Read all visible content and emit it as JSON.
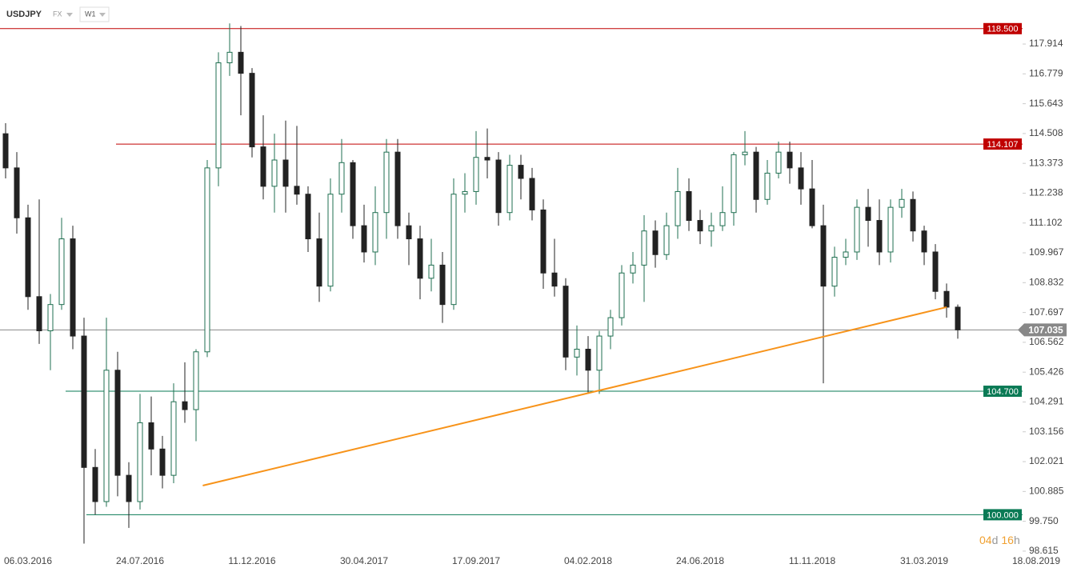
{
  "header": {
    "symbol": "USDJPY",
    "market": "FX",
    "interval": "W1"
  },
  "countdown": [
    "04",
    "d",
    "16",
    "h"
  ],
  "chart_data": {
    "type": "candlestick",
    "categories": [
      null,
      null,
      "06.03.2016",
      null,
      null,
      null,
      null,
      null,
      null,
      null,
      null,
      null,
      "24.07.2016",
      null,
      null,
      null,
      null,
      null,
      null,
      null,
      null,
      null,
      "11.12.2016",
      null,
      null,
      null,
      null,
      null,
      null,
      null,
      null,
      null,
      "30.04.2017",
      null,
      null,
      null,
      null,
      null,
      null,
      null,
      null,
      null,
      "17.09.2017",
      null,
      null,
      null,
      null,
      null,
      null,
      null,
      null,
      null,
      "04.02.2018",
      null,
      null,
      null,
      null,
      null,
      null,
      null,
      null,
      null,
      "24.06.2018",
      null,
      null,
      null,
      null,
      null,
      null,
      null,
      null,
      null,
      "11.11.2018",
      null,
      null,
      null,
      null,
      null,
      null,
      null,
      null,
      null,
      "31.03.2019",
      null,
      null,
      null,
      null,
      null,
      null,
      null,
      null,
      null,
      "18.08.2019"
    ],
    "open": [
      114.5,
      113.2,
      111.3,
      108.3,
      107,
      108,
      110.5,
      106.8,
      101.8,
      100.5,
      105.5,
      101.5,
      100.5,
      103.5,
      102.5,
      101.5,
      104.3,
      104,
      106.2,
      113.2,
      117.2,
      117.6,
      116.8,
      114,
      112.5,
      113.5,
      112.5,
      112.2,
      110.5,
      108.7,
      112.2,
      113.4,
      111,
      110,
      111.5,
      113.8,
      111,
      110.5,
      109,
      109.5,
      108,
      112.2,
      112.3,
      113.6,
      113.5,
      111.5,
      113.3,
      112.8,
      111.6,
      109.2,
      108.7,
      106,
      106.3,
      105.5,
      106.8,
      107.5,
      109.2,
      109.5,
      110.8,
      109.9,
      111,
      112.3,
      111.2,
      110.8,
      111,
      111.5,
      113.7,
      113.8,
      112,
      113,
      113.8,
      113.2,
      112.4,
      111,
      108.7,
      109.8,
      110,
      111.7,
      111.2,
      110,
      111.7,
      112,
      110.8,
      110,
      108.5,
      107.9,
      null,
      null,
      null,
      null,
      null,
      null,
      null
    ],
    "high": [
      114.9,
      113.8,
      111.8,
      112,
      108.4,
      111.3,
      111,
      107.5,
      102.5,
      107.5,
      106.2,
      102,
      104.6,
      104.5,
      103,
      105,
      105.8,
      106.3,
      113.5,
      117.6,
      118.7,
      118.6,
      117,
      115.2,
      114.5,
      115,
      114.8,
      112.5,
      111.5,
      112.8,
      114.3,
      113.5,
      111.8,
      112.5,
      114.3,
      114.3,
      111.5,
      111,
      110.5,
      110,
      112.8,
      113,
      114.6,
      114.7,
      113.8,
      113.7,
      113.7,
      113.2,
      112,
      110.5,
      109,
      107.2,
      106.8,
      107,
      107.8,
      109.5,
      110,
      111.4,
      111.2,
      111.5,
      113.2,
      112.8,
      111.6,
      111.5,
      112.5,
      113.8,
      114.6,
      114,
      113.5,
      114.2,
      114.2,
      113.8,
      113.5,
      111.8,
      110.2,
      110.5,
      112,
      112.4,
      112,
      112,
      112.4,
      112.3,
      111,
      110.3,
      108.8,
      108,
      null,
      null,
      null,
      null,
      null,
      null,
      null
    ],
    "low": [
      112.8,
      110.7,
      107.8,
      106.5,
      105.5,
      107.8,
      106.3,
      98.9,
      100,
      100.3,
      100.7,
      99.5,
      100.2,
      101.5,
      101,
      101.2,
      103.5,
      102.8,
      106,
      112.5,
      116.7,
      115.2,
      113.6,
      112,
      111.5,
      111.5,
      111.8,
      110,
      108.1,
      108.5,
      111.5,
      110.5,
      109.6,
      109.5,
      110.5,
      110.5,
      109.5,
      108.2,
      108.5,
      107.3,
      107.8,
      111.5,
      111.8,
      112.8,
      111,
      111.2,
      112,
      111.2,
      108.6,
      108.3,
      105.5,
      105.3,
      104.6,
      104.6,
      106.3,
      107.2,
      108.8,
      108.1,
      109.4,
      109.7,
      110.5,
      110.8,
      110.3,
      110.2,
      110.8,
      111,
      113.3,
      111.5,
      111.8,
      112.8,
      112.6,
      111.8,
      110.9,
      105,
      108.3,
      109.5,
      109.7,
      110.2,
      109.5,
      109.6,
      111.3,
      110.4,
      109.5,
      108.2,
      107.5,
      106.7,
      null,
      null,
      null,
      null,
      null,
      null,
      null
    ],
    "close": [
      113.2,
      111.3,
      108.3,
      107,
      108,
      110.5,
      106.8,
      101.8,
      100.5,
      105.5,
      101.5,
      100.5,
      103.5,
      102.5,
      101.5,
      104.3,
      104,
      106.2,
      113.2,
      117.2,
      117.6,
      116.8,
      114,
      112.5,
      113.5,
      112.5,
      112.2,
      110.5,
      108.7,
      112.2,
      113.4,
      111,
      110,
      111.5,
      113.8,
      111,
      110.5,
      109,
      109.5,
      108,
      112.2,
      112.3,
      113.6,
      113.5,
      111.5,
      113.3,
      112.8,
      111.6,
      109.2,
      108.7,
      106,
      106.3,
      105.5,
      106.8,
      107.5,
      109.2,
      109.5,
      110.8,
      109.9,
      111,
      112.3,
      111.2,
      110.8,
      111,
      111.5,
      113.7,
      113.8,
      112,
      113,
      113.8,
      113.2,
      112.4,
      111,
      108.7,
      109.8,
      110,
      111.7,
      111.2,
      110,
      111.7,
      112,
      110.8,
      110,
      108.5,
      107.9,
      107.035,
      null,
      null,
      null,
      null,
      null,
      null,
      null
    ],
    "up_color": "#1f6f50",
    "down_color": "#222222",
    "ylim": [
      97.82,
      119.59
    ],
    "yticks": [
      117.914,
      116.779,
      115.643,
      114.508,
      113.373,
      112.238,
      111.102,
      109.967,
      108.832,
      107.697,
      106.562,
      105.426,
      104.291,
      103.156,
      102.021,
      100.885,
      {
        "value": 99.75,
        "label": "99.750"
      },
      98.615
    ],
    "levels": [
      {
        "value": 118.5,
        "label": "118.500",
        "color": "#c00000"
      },
      {
        "value": 114.107,
        "label": "114.107",
        "color": "#c00000"
      },
      {
        "value": 104.7,
        "label": "104.700",
        "color": "#0a7a55"
      },
      {
        "value": 100,
        "label": "100.000",
        "color": "#0a7a55"
      }
    ],
    "trendline": {
      "color": "#f7931a",
      "x": [
        17.6,
        84
      ],
      "values": [
        101.11,
        107.9
      ]
    },
    "last_price": {
      "value": 107.035,
      "color": "#888888"
    }
  }
}
